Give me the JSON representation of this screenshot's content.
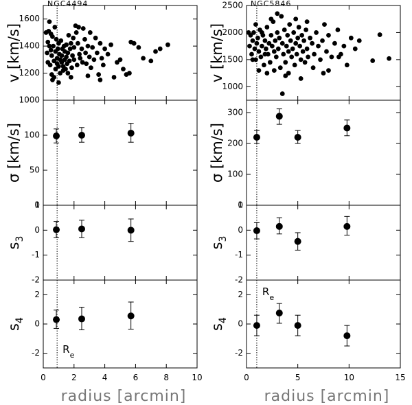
{
  "chart_data": [
    {
      "type": "scatter",
      "galaxy": "NGC4494",
      "xlabel": "radius [arcmin]",
      "xlim": [
        0,
        10
      ],
      "x_ticks": [
        "0",
        "2",
        "4",
        "6",
        "8",
        "10"
      ],
      "re_marker": {
        "x": 0.9,
        "label": "R",
        "subscript": "e"
      },
      "panels": [
        {
          "id": "v",
          "type": "scatter",
          "ylabel": "v [km/s]",
          "ylim": [
            1000,
            1700
          ],
          "y_ticks": [
            "1000",
            "1200",
            "1400",
            "1600"
          ],
          "points": [
            [
              0.18,
              1500
            ],
            [
              0.25,
              1350
            ],
            [
              0.3,
              1430
            ],
            [
              0.3,
              1280
            ],
            [
              0.35,
              1510
            ],
            [
              0.4,
              1580
            ],
            [
              0.4,
              1400
            ],
            [
              0.45,
              1260
            ],
            [
              0.5,
              1490
            ],
            [
              0.5,
              1370
            ],
            [
              0.55,
              1330
            ],
            [
              0.6,
              1470
            ],
            [
              0.6,
              1150
            ],
            [
              0.65,
              1400
            ],
            [
              0.7,
              1290
            ],
            [
              0.7,
              1170
            ],
            [
              0.75,
              1540
            ],
            [
              0.8,
              1360
            ],
            [
              0.8,
              1230
            ],
            [
              0.85,
              1450
            ],
            [
              0.9,
              1310
            ],
            [
              0.9,
              1270
            ],
            [
              0.95,
              1380
            ],
            [
              1.0,
              1420
            ],
            [
              1.0,
              1250
            ],
            [
              1.05,
              1340
            ],
            [
              1.1,
              1300
            ],
            [
              1.1,
              1200
            ],
            [
              1.15,
              1440
            ],
            [
              1.2,
              1280
            ],
            [
              1.2,
              1330
            ],
            [
              1.25,
              1380
            ],
            [
              1.3,
              1250
            ],
            [
              1.3,
              1220
            ],
            [
              1.35,
              1400
            ],
            [
              1.4,
              1300
            ],
            [
              1.4,
              1360
            ],
            [
              1.45,
              1230
            ],
            [
              1.5,
              1320
            ],
            [
              1.5,
              1410
            ],
            [
              1.55,
              1270
            ],
            [
              1.6,
              1350
            ],
            [
              1.6,
              1200
            ],
            [
              1.65,
              1480
            ],
            [
              1.7,
              1290
            ],
            [
              1.75,
              1380
            ],
            [
              1.8,
              1420
            ],
            [
              1.85,
              1240
            ],
            [
              1.9,
              1330
            ],
            [
              1.95,
              1460
            ],
            [
              2.0,
              1300
            ],
            [
              2.0,
              1390
            ],
            [
              2.1,
              1550
            ],
            [
              2.15,
              1500
            ],
            [
              2.2,
              1260
            ],
            [
              2.25,
              1420
            ],
            [
              2.3,
              1540
            ],
            [
              2.35,
              1340
            ],
            [
              2.4,
              1310
            ],
            [
              2.5,
              1380
            ],
            [
              2.55,
              1280
            ],
            [
              2.6,
              1530
            ],
            [
              2.7,
              1450
            ],
            [
              2.75,
              1350
            ],
            [
              2.8,
              1270
            ],
            [
              2.9,
              1400
            ],
            [
              3.0,
              1320
            ],
            [
              3.05,
              1500
            ],
            [
              3.1,
              1240
            ],
            [
              3.2,
              1390
            ],
            [
              3.3,
              1300
            ],
            [
              3.4,
              1460
            ],
            [
              3.5,
              1350
            ],
            [
              3.6,
              1190
            ],
            [
              3.7,
              1420
            ],
            [
              3.8,
              1310
            ],
            [
              3.9,
              1260
            ],
            [
              4.0,
              1380
            ],
            [
              4.2,
              1340
            ],
            [
              4.4,
              1410
            ],
            [
              4.6,
              1170
            ],
            [
              4.8,
              1280
            ],
            [
              5.0,
              1300
            ],
            [
              5.2,
              1230
            ],
            [
              5.4,
              1190
            ],
            [
              5.6,
              1200
            ],
            [
              5.7,
              1430
            ],
            [
              5.9,
              1420
            ],
            [
              6.2,
              1390
            ],
            [
              6.5,
              1310
            ],
            [
              7.0,
              1290
            ],
            [
              7.3,
              1360
            ],
            [
              7.6,
              1380
            ],
            [
              8.1,
              1410
            ],
            [
              1.0,
              1130
            ],
            [
              0.55,
              1190
            ],
            [
              1.8,
              1170
            ],
            [
              2.9,
              1180
            ],
            [
              3.7,
              1150
            ]
          ]
        },
        {
          "id": "sigma",
          "type": "scatter",
          "ylabel": "σ [km/s]",
          "ylim": [
            0,
            150
          ],
          "y_ticks": [
            "0",
            "50",
            "100"
          ],
          "points": [
            {
              "x": 0.85,
              "y": 99,
              "lo": 89,
              "hi": 109
            },
            {
              "x": 2.5,
              "y": 100,
              "lo": 90,
              "hi": 111
            },
            {
              "x": 5.7,
              "y": 103,
              "lo": 90,
              "hi": 117
            }
          ]
        },
        {
          "id": "s3",
          "type": "scatter",
          "ylabel": "s3",
          "ylim": [
            -2,
            1
          ],
          "y_ticks": [
            "-2",
            "-1",
            "0",
            "1"
          ],
          "points": [
            {
              "x": 0.85,
              "y": 0.02,
              "lo": -0.3,
              "hi": 0.35
            },
            {
              "x": 2.5,
              "y": 0.05,
              "lo": -0.3,
              "hi": 0.4
            },
            {
              "x": 5.7,
              "y": 0.0,
              "lo": -0.45,
              "hi": 0.45
            }
          ]
        },
        {
          "id": "s4",
          "type": "scatter",
          "ylabel": "s4",
          "ylim": [
            -3,
            3
          ],
          "y_ticks": [
            "-2",
            "0",
            "2"
          ],
          "points": [
            {
              "x": 0.85,
              "y": 0.3,
              "lo": -0.3,
              "hi": 0.95
            },
            {
              "x": 2.5,
              "y": 0.35,
              "lo": -0.4,
              "hi": 1.15
            },
            {
              "x": 5.7,
              "y": 0.55,
              "lo": -0.35,
              "hi": 1.5
            }
          ]
        }
      ]
    },
    {
      "type": "scatter",
      "galaxy": "NGC5846",
      "xlabel": "radius [arcmin]",
      "xlim": [
        0,
        15
      ],
      "x_ticks": [
        "0",
        "5",
        "10",
        "15"
      ],
      "re_marker": {
        "x": 1.0,
        "label": "R",
        "subscript": "e"
      },
      "panels": [
        {
          "id": "v",
          "type": "scatter",
          "ylabel": "v [km/s]",
          "ylim": [
            750,
            2500
          ],
          "y_ticks": [
            "1000",
            "1500",
            "2000",
            "2500"
          ],
          "points": [
            [
              0.3,
              1750
            ],
            [
              0.4,
              1950
            ],
            [
              0.5,
              1600
            ],
            [
              0.6,
              1850
            ],
            [
              0.7,
              2000
            ],
            [
              0.8,
              1700
            ],
            [
              0.9,
              1500
            ],
            [
              1.0,
              1800
            ],
            [
              1.1,
              1900
            ],
            [
              1.2,
              1650
            ],
            [
              1.3,
              2050
            ],
            [
              1.4,
              1550
            ],
            [
              1.5,
              1750
            ],
            [
              1.6,
              1950
            ],
            [
              1.7,
              1400
            ],
            [
              1.8,
              1850
            ],
            [
              1.9,
              1700
            ],
            [
              2.0,
              2100
            ],
            [
              2.1,
              1600
            ],
            [
              2.2,
              1800
            ],
            [
              2.3,
              1450
            ],
            [
              2.4,
              1950
            ],
            [
              2.5,
              1750
            ],
            [
              2.6,
              2200
            ],
            [
              2.7,
              1650
            ],
            [
              2.8,
              1850
            ],
            [
              2.9,
              1550
            ],
            [
              3.0,
              2000
            ],
            [
              3.1,
              1700
            ],
            [
              3.2,
              1900
            ],
            [
              3.3,
              1350
            ],
            [
              3.4,
              2300
            ],
            [
              3.5,
              1800
            ],
            [
              3.6,
              1600
            ],
            [
              3.7,
              2050
            ],
            [
              3.8,
              1450
            ],
            [
              3.9,
              1750
            ],
            [
              4.0,
              1950
            ],
            [
              4.1,
              1650
            ],
            [
              4.2,
              2150
            ],
            [
              4.3,
              1850
            ],
            [
              4.4,
              1550
            ],
            [
              4.5,
              1700
            ],
            [
              4.6,
              2000
            ],
            [
              4.7,
              1400
            ],
            [
              4.8,
              1800
            ],
            [
              4.9,
              1600
            ],
            [
              5.0,
              1900
            ],
            [
              5.1,
              2100
            ],
            [
              5.2,
              1750
            ],
            [
              5.3,
              1500
            ],
            [
              5.4,
              1950
            ],
            [
              5.5,
              1650
            ],
            [
              5.6,
              1850
            ],
            [
              5.7,
              1450
            ],
            [
              5.8,
              2050
            ],
            [
              5.9,
              1700
            ],
            [
              6.0,
              1550
            ],
            [
              6.2,
              1900
            ],
            [
              6.4,
              1800
            ],
            [
              6.6,
              1600
            ],
            [
              6.8,
              2000
            ],
            [
              7.0,
              1750
            ],
            [
              7.2,
              1500
            ],
            [
              7.4,
              1850
            ],
            [
              7.6,
              2150
            ],
            [
              7.8,
              1650
            ],
            [
              8.0,
              1950
            ],
            [
              8.3,
              1550
            ],
            [
              8.6,
              1800
            ],
            [
              8.9,
              2050
            ],
            [
              9.2,
              1600
            ],
            [
              9.5,
              1750
            ],
            [
              9.8,
              1400
            ],
            [
              10.2,
              1900
            ],
            [
              10.6,
              1700
            ],
            [
              11.0,
              1850
            ],
            [
              12.3,
              1480
            ],
            [
              13.0,
              1960
            ],
            [
              13.9,
              1520
            ],
            [
              3.5,
              870
            ],
            [
              2.4,
              2250
            ],
            [
              3.0,
              2350
            ],
            [
              4.1,
              1250
            ],
            [
              5.3,
              1150
            ],
            [
              1.2,
              1300
            ],
            [
              0.6,
              1500
            ],
            [
              2.0,
              1250
            ],
            [
              6.5,
              1350
            ],
            [
              7.5,
              1250
            ],
            [
              4.8,
              2250
            ],
            [
              0.9,
              2150
            ],
            [
              1.5,
              2000
            ],
            [
              2.7,
              1300
            ],
            [
              3.8,
              1200
            ],
            [
              5.9,
              2200
            ],
            [
              8.0,
              1300
            ],
            [
              9.0,
              1550
            ],
            [
              0.2,
              2000
            ],
            [
              1.8,
              1600
            ]
          ]
        },
        {
          "id": "sigma",
          "type": "scatter",
          "ylabel": "σ [km/s]",
          "ylim": [
            0,
            340
          ],
          "y_ticks": [
            "0",
            "100",
            "200",
            "300"
          ],
          "points": [
            {
              "x": 1.0,
              "y": 220,
              "lo": 200,
              "hi": 242
            },
            {
              "x": 3.2,
              "y": 288,
              "lo": 262,
              "hi": 312
            },
            {
              "x": 5.0,
              "y": 220,
              "lo": 200,
              "hi": 242
            },
            {
              "x": 9.8,
              "y": 250,
              "lo": 225,
              "hi": 276
            }
          ]
        },
        {
          "id": "s3",
          "type": "scatter",
          "ylabel": "s3",
          "ylim": [
            -2,
            1
          ],
          "y_ticks": [
            "-2",
            "-1",
            "0",
            "1"
          ],
          "points": [
            {
              "x": 1.0,
              "y": -0.02,
              "lo": -0.35,
              "hi": 0.3
            },
            {
              "x": 3.2,
              "y": 0.15,
              "lo": -0.15,
              "hi": 0.5
            },
            {
              "x": 5.0,
              "y": -0.45,
              "lo": -0.8,
              "hi": -0.1
            },
            {
              "x": 9.8,
              "y": 0.15,
              "lo": -0.2,
              "hi": 0.55
            }
          ]
        },
        {
          "id": "s4",
          "type": "scatter",
          "ylabel": "s4",
          "ylim": [
            -3,
            3
          ],
          "y_ticks": [
            "-2",
            "0",
            "2"
          ],
          "points": [
            {
              "x": 1.0,
              "y": -0.1,
              "lo": -0.8,
              "hi": 0.6
            },
            {
              "x": 3.2,
              "y": 0.75,
              "lo": 0.05,
              "hi": 1.4
            },
            {
              "x": 5.0,
              "y": -0.1,
              "lo": -0.8,
              "hi": 0.6
            },
            {
              "x": 9.8,
              "y": -0.8,
              "lo": -1.5,
              "hi": -0.1
            }
          ]
        }
      ]
    }
  ]
}
